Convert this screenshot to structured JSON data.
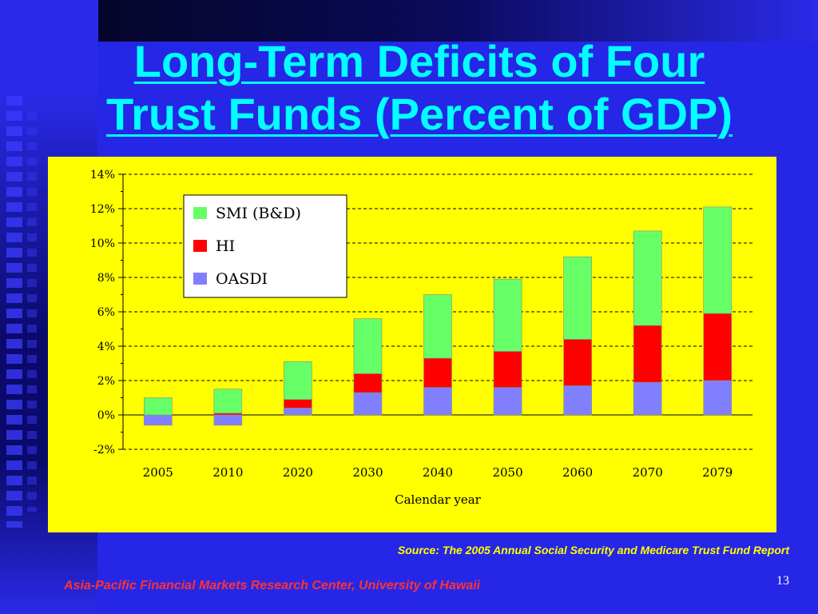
{
  "slide": {
    "title_line1": "Long-Term Deficits of Four",
    "title_line2": "Trust Funds (Percent of GDP)",
    "source": "Source:  The 2005 Annual Social Security and Medicare Trust Fund Report",
    "footer": "Asia-Pacific Financial Markets Research Center, University of Hawaii",
    "page_number": "13"
  },
  "chart_data": {
    "type": "bar",
    "stacked": true,
    "categories": [
      "2005",
      "2010",
      "2020",
      "2030",
      "2040",
      "2050",
      "2060",
      "2070",
      "2079"
    ],
    "series": [
      {
        "name": "OASDI",
        "color": "#8080ff",
        "values": [
          -0.6,
          -0.6,
          0.4,
          1.3,
          1.6,
          1.6,
          1.7,
          1.9,
          2.0
        ]
      },
      {
        "name": "HI",
        "color": "#ff0000",
        "values": [
          0.0,
          0.1,
          0.5,
          1.1,
          1.7,
          2.1,
          2.7,
          3.3,
          3.9
        ]
      },
      {
        "name": "SMI (B&D)",
        "color": "#66ff66",
        "values": [
          1.0,
          1.4,
          2.2,
          3.2,
          3.7,
          4.2,
          4.8,
          5.5,
          6.2
        ]
      }
    ],
    "ylim": [
      -2,
      14
    ],
    "yticks": [
      -2,
      0,
      2,
      4,
      6,
      8,
      10,
      12,
      14
    ],
    "ytick_format": "%",
    "xlabel": "Calendar year",
    "ylabel": "",
    "grid": "horizontal-dashed",
    "legend_position": "top-left",
    "legend_order": [
      "SMI (B&D)",
      "HI",
      "OASDI"
    ],
    "plot_background": "#ffff00"
  }
}
